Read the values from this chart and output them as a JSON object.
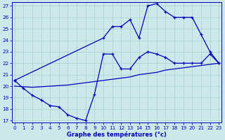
{
  "title": "Graphe des températures (°c)",
  "bg_color": "#cce8e8",
  "grid_color": "#aad4d4",
  "line_color": "#0000bb",
  "xlim": [
    -0.3,
    23.3
  ],
  "ylim": [
    16.8,
    27.3
  ],
  "yticks": [
    17,
    18,
    19,
    20,
    21,
    22,
    23,
    24,
    25,
    26,
    27
  ],
  "xticks": [
    0,
    1,
    2,
    3,
    4,
    5,
    6,
    7,
    8,
    9,
    10,
    11,
    12,
    13,
    14,
    15,
    16,
    17,
    18,
    19,
    20,
    21,
    22,
    23
  ],
  "curve1_x": [
    0,
    1,
    2,
    3,
    4,
    5,
    6,
    7,
    8,
    9,
    10,
    11,
    12,
    13,
    14,
    15,
    16,
    17,
    18,
    19,
    20,
    21,
    22,
    23
  ],
  "curve1_y": [
    20.5,
    19.8,
    19.2,
    18.8,
    18.3,
    18.2,
    17.5,
    17.2,
    17.0,
    19.3,
    22.8,
    22.8,
    21.5,
    21.5,
    22.5,
    23.0,
    22.8,
    22.5,
    22.0,
    22.0,
    22.0,
    22.0,
    22.8,
    22.0
  ],
  "curve2_x": [
    0,
    10,
    11,
    12,
    13,
    14,
    15,
    16,
    17,
    18,
    19,
    20,
    21,
    22,
    23
  ],
  "curve2_y": [
    20.5,
    24.2,
    25.2,
    25.2,
    25.8,
    24.2,
    27.0,
    27.2,
    26.5,
    26.0,
    26.0,
    26.0,
    24.5,
    23.0,
    22.0
  ],
  "curve3_x": [
    0,
    1,
    2,
    3,
    4,
    5,
    6,
    7,
    8,
    9,
    10,
    11,
    12,
    13,
    14,
    15,
    16,
    17,
    18,
    19,
    20,
    21,
    22,
    23
  ],
  "curve3_y": [
    20.0,
    19.95,
    19.9,
    19.95,
    20.0,
    20.05,
    20.1,
    20.2,
    20.3,
    20.4,
    20.5,
    20.6,
    20.7,
    20.8,
    21.0,
    21.1,
    21.2,
    21.4,
    21.5,
    21.6,
    21.7,
    21.8,
    21.9,
    22.0
  ]
}
